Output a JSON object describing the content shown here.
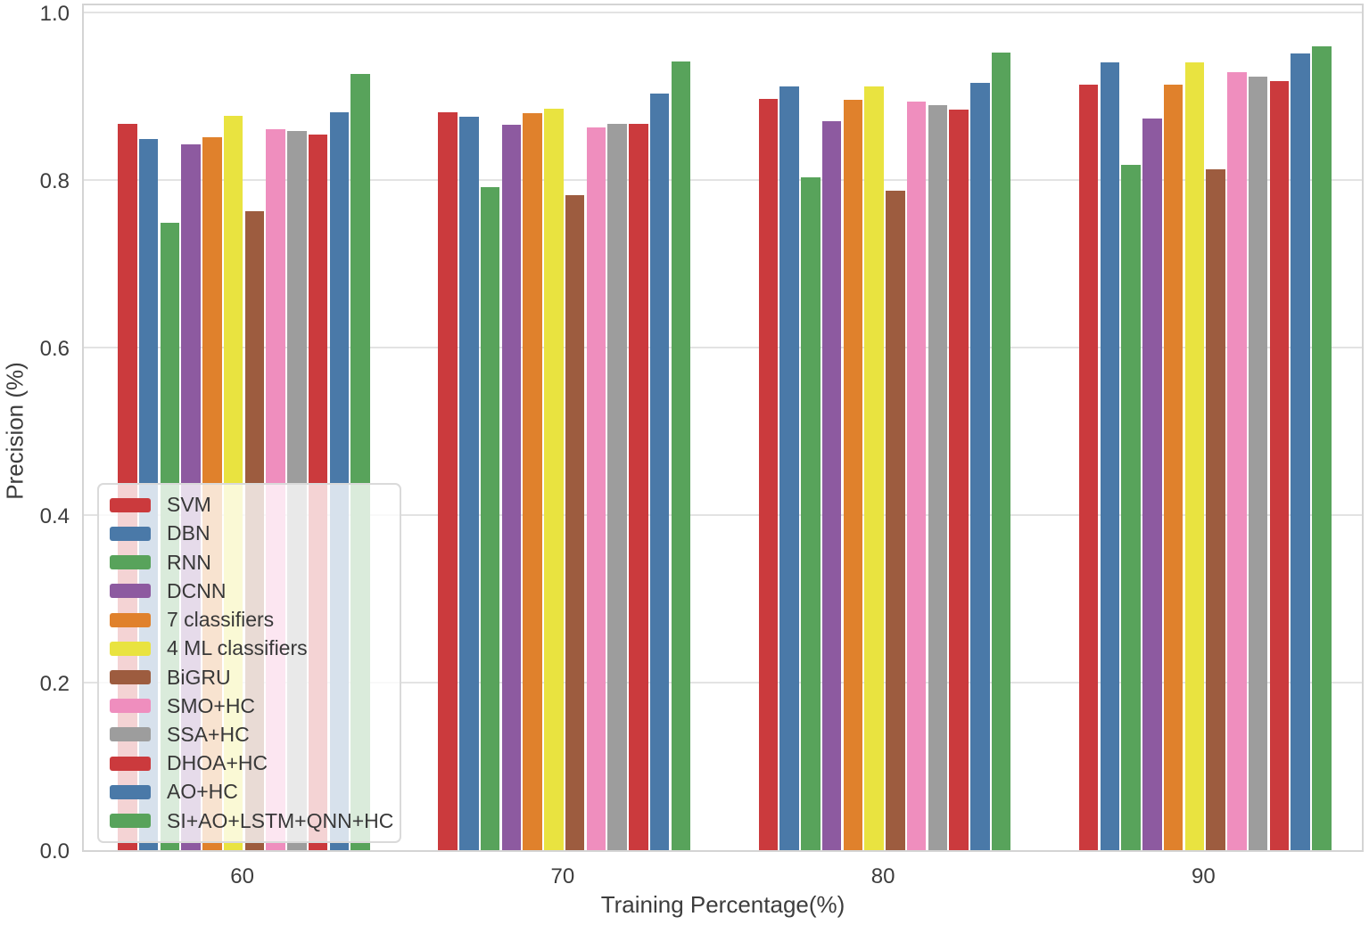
{
  "chart_data": {
    "type": "bar",
    "title": "",
    "xlabel": "Training Percentage(%)",
    "ylabel": "Precision (%)",
    "categories": [
      "60",
      "70",
      "80",
      "90"
    ],
    "ylim": [
      0.0,
      1.012
    ],
    "yticks": [
      "0.0",
      "0.2",
      "0.4",
      "0.6",
      "0.8",
      "1.0"
    ],
    "grid": true,
    "legend_position": "lower-left",
    "series": [
      {
        "name": "SVM",
        "color": "#cb3a3d",
        "values": [
          0.867,
          0.881,
          0.897,
          0.914
        ]
      },
      {
        "name": "DBN",
        "color": "#4a79a8",
        "values": [
          0.849,
          0.876,
          0.912,
          0.94
        ]
      },
      {
        "name": "RNN",
        "color": "#58a35b",
        "values": [
          0.749,
          0.791,
          0.803,
          0.818
        ]
      },
      {
        "name": "DCNN",
        "color": "#8d5aa0",
        "values": [
          0.843,
          0.866,
          0.87,
          0.873
        ]
      },
      {
        "name": "7 classifiers",
        "color": "#e0812c",
        "values": [
          0.851,
          0.88,
          0.896,
          0.914
        ]
      },
      {
        "name": "4 ML classifiers",
        "color": "#e9e340",
        "values": [
          0.877,
          0.885,
          0.912,
          0.94
        ]
      },
      {
        "name": "BiGRU",
        "color": "#9d5c3f",
        "values": [
          0.763,
          0.782,
          0.787,
          0.813
        ]
      },
      {
        "name": "SMO+HC",
        "color": "#ef8ebe",
        "values": [
          0.861,
          0.863,
          0.894,
          0.929
        ]
      },
      {
        "name": "SSA+HC",
        "color": "#9d9d9d",
        "values": [
          0.859,
          0.867,
          0.889,
          0.923
        ]
      },
      {
        "name": "DHOA+HC",
        "color": "#cb3a3d",
        "values": [
          0.854,
          0.867,
          0.884,
          0.918
        ]
      },
      {
        "name": "AO+HC",
        "color": "#4a79a8",
        "values": [
          0.881,
          0.903,
          0.916,
          0.951
        ]
      },
      {
        "name": "SI+AO+LSTM+QNN+HC",
        "color": "#58a35b",
        "values": [
          0.927,
          0.941,
          0.952,
          0.96
        ]
      }
    ],
    "style": {
      "grid_color": "#e3e3e3",
      "spine_color": "#d4d4d4",
      "text_color": "#3d3d3d",
      "legend_background": "rgba(255,255,255,0.78)"
    }
  }
}
